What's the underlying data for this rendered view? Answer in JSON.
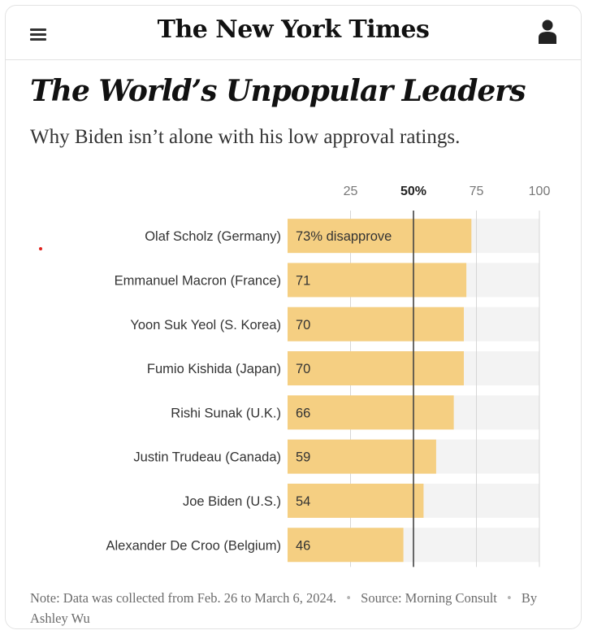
{
  "masthead": {
    "logo_text": "The New York Times",
    "menu_icon": "hamburger-menu-icon",
    "account_icon": "account-icon"
  },
  "article": {
    "headline": "The World’s Unpopular Leaders",
    "dek": "Why Biden isn’t alone with his low approval ratings."
  },
  "chart_data": {
    "type": "bar",
    "orientation": "horizontal",
    "title": "The World’s Unpopular Leaders",
    "metric": "disapprove",
    "categories": [
      "Olaf Scholz (Germany)",
      "Emmanuel Macron (France)",
      "Yoon Suk Yeol (S. Korea)",
      "Fumio Kishida (Japan)",
      "Rishi Sunak (U.K.)",
      "Justin Trudeau (Canada)",
      "Joe Biden (U.S.)",
      "Alexander De Croo (Belgium)"
    ],
    "values": [
      73,
      71,
      70,
      70,
      66,
      59,
      54,
      46
    ],
    "value_labels": [
      "73% disapprove",
      "71",
      "70",
      "70",
      "66",
      "59",
      "54",
      "46"
    ],
    "xlim": [
      0,
      100
    ],
    "ticks": [
      25,
      50,
      75,
      100
    ],
    "tick_labels": [
      "25",
      "50%",
      "75",
      "100"
    ],
    "reference_line": 50,
    "colors": {
      "bar": "#f5cf82",
      "track": "#f3f3f3",
      "reference": "#444444",
      "grid": "#d6d6d6",
      "label": "#333333"
    }
  },
  "footer": {
    "note": "Note: Data was collected from Feb. 26 to March 6, 2024.",
    "source": "Source: Morning Consult",
    "byline": "By Ashley Wu",
    "separator": "•"
  }
}
